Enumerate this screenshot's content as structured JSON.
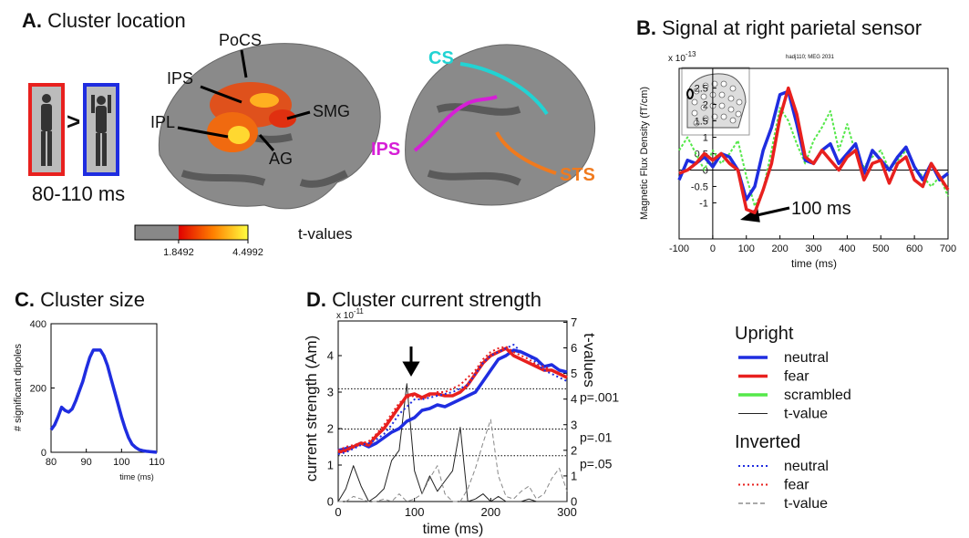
{
  "panel_a": {
    "title": {
      "letter": "A.",
      "text": "Cluster location"
    },
    "comparison": ">",
    "time_window": "80-110 ms",
    "left_labels": [
      "PoCS",
      "IPS",
      "IPL",
      "SMG",
      "AG"
    ],
    "right_labels": [
      {
        "text": "CS",
        "color": "#22d3d3"
      },
      {
        "text": "IPS",
        "color": "#d61fd6"
      },
      {
        "text": "STS",
        "color": "#f07a1e"
      }
    ],
    "colorbar": {
      "label": "t-values",
      "lim": [
        0.18,
        4.4992
      ],
      "ticks": [
        1.8492,
        4.4992
      ]
    }
  },
  "chart_data": [
    {
      "type": "line",
      "title": {
        "letter": "B.",
        "text": "Signal at right parietal sensor"
      },
      "xlabel": "time (ms)",
      "ylabel": "Magnetic Flux Density (fT/cm)",
      "y_multiplier": "x 10",
      "y_exponent": "-13",
      "sensor_label": "hadj110; MEG 2031",
      "annotation": "100 ms",
      "zero_axes": true,
      "x": [
        -100,
        -75,
        -50,
        -25,
        0,
        25,
        50,
        75,
        100,
        125,
        150,
        175,
        200,
        225,
        250,
        275,
        300,
        325,
        350,
        375,
        400,
        425,
        450,
        475,
        500,
        525,
        550,
        575,
        600,
        625,
        650,
        675,
        700
      ],
      "xlim": [
        -100,
        700
      ],
      "xticks": [
        -100,
        0,
        100,
        200,
        300,
        400,
        500,
        600,
        700
      ],
      "ylim": [
        -2.1,
        3.1
      ],
      "yticks": [
        -1,
        -0.5,
        0,
        0.5,
        1,
        1.5,
        2,
        2.5
      ],
      "series": [
        {
          "color": "#55e84a",
          "style": "dotted-thick",
          "values": [
            0.6,
            1,
            0.5,
            0,
            0.6,
            0.2,
            0.5,
            0.9,
            -0.2,
            -1.1,
            -0.6,
            0.6,
            1.9,
            1.5,
            0.8,
            0.2,
            0.9,
            1.3,
            1.8,
            0.6,
            1.4,
            0.5,
            0.1,
            0.4,
            0.6,
            0,
            0.3,
            0.6,
            0.1,
            -0.2,
            -0.5,
            -0.2,
            -0.8
          ]
        },
        {
          "color": "#1f2de0",
          "style": "solid",
          "values": [
            -0.3,
            0.3,
            0.2,
            0.4,
            0.1,
            0.5,
            0.4,
            0,
            -0.9,
            -0.5,
            0.6,
            1.3,
            2.3,
            2.4,
            1.4,
            0.3,
            0.2,
            0.6,
            0.8,
            0.2,
            0.5,
            0.8,
            -0.1,
            0.6,
            0.3,
            0,
            0.4,
            0.7,
            0.1,
            -0.3,
            0.2,
            -0.3,
            -0.1
          ]
        },
        {
          "color": "#e8201e",
          "style": "solid",
          "values": [
            -0.1,
            0,
            0.2,
            0.5,
            0.3,
            0.5,
            0.2,
            0,
            -1.2,
            -1.3,
            -0.6,
            0.2,
            1.6,
            2.5,
            1.7,
            0.4,
            0.2,
            0.6,
            0.3,
            0,
            0.4,
            0.6,
            -0.3,
            0.2,
            0.3,
            -0.4,
            0.2,
            0.4,
            -0.3,
            -0.5,
            0.2,
            -0.2,
            -0.6
          ]
        }
      ]
    },
    {
      "type": "line",
      "title": {
        "letter": "C.",
        "text": "Cluster size"
      },
      "xlabel": "time (ms)",
      "ylabel": "# significant dipoles",
      "x": [
        80,
        81,
        82,
        83,
        84,
        85,
        86,
        87,
        88,
        89,
        90,
        91,
        92,
        93,
        94,
        95,
        96,
        97,
        98,
        99,
        100,
        101,
        102,
        103,
        104,
        105,
        106,
        107,
        108,
        109,
        110
      ],
      "xlim": [
        80,
        110
      ],
      "xticks": [
        80,
        90,
        100,
        110
      ],
      "ylim": [
        0,
        400
      ],
      "yticks": [
        0,
        200,
        400
      ],
      "series": [
        {
          "color": "#1f2de0",
          "style": "solid",
          "values": [
            70,
            85,
            110,
            140,
            130,
            125,
            135,
            160,
            190,
            220,
            260,
            295,
            318,
            318,
            318,
            300,
            270,
            230,
            190,
            150,
            110,
            75,
            45,
            25,
            15,
            8,
            5,
            3,
            2,
            1,
            0
          ]
        }
      ]
    },
    {
      "type": "line",
      "title": {
        "letter": "D.",
        "text": "Cluster current strength"
      },
      "xlabel": "time (ms)",
      "ylabel": "current strength (Am)",
      "y2label": "t-values",
      "y_multiplier": "x 10",
      "y_exponent": "-11",
      "x": [
        0,
        10,
        20,
        30,
        40,
        50,
        60,
        70,
        80,
        90,
        100,
        110,
        120,
        130,
        140,
        150,
        160,
        170,
        180,
        190,
        200,
        210,
        220,
        230,
        240,
        250,
        260,
        270,
        280,
        290,
        300
      ],
      "xlim": [
        0,
        300
      ],
      "xticks": [
        0,
        100,
        200,
        300
      ],
      "ylim": [
        0,
        4.95
      ],
      "yticks": [
        0,
        1,
        2,
        3,
        4
      ],
      "y2lim": [
        0,
        7.05
      ],
      "y2ticks": [
        0,
        1,
        2,
        3,
        4,
        5,
        6,
        7
      ],
      "thresholds": [
        {
          "label": "p=.001",
          "value": 4.4
        },
        {
          "label": "p=.01",
          "value": 2.83
        },
        {
          "label": "p=.05",
          "value": 1.79
        }
      ],
      "series": [
        {
          "color": "#222222",
          "style": "thin",
          "axis": "y2",
          "values": [
            0,
            0.5,
            1.4,
            0.6,
            0,
            0.2,
            0.5,
            1.6,
            2,
            4.6,
            1.2,
            0.3,
            1,
            0.4,
            0.8,
            1.2,
            2.9,
            0,
            0.1,
            0.3,
            0,
            0.2,
            0,
            0,
            0,
            0.1,
            0,
            0,
            0,
            0,
            0
          ]
        },
        {
          "color": "#888888",
          "style": "dashed-thin",
          "axis": "y2",
          "values": [
            0,
            0,
            0.2,
            0.1,
            0,
            0,
            0.1,
            0,
            0.3,
            0,
            0.1,
            0.3,
            0.9,
            1.4,
            0.3,
            0,
            0,
            0.5,
            1.3,
            2.3,
            3.2,
            1,
            0.2,
            0.1,
            0.4,
            0.6,
            0.1,
            0.3,
            0.9,
            1.3,
            0.4
          ]
        },
        {
          "color": "#1f2de0",
          "style": "solid",
          "values": [
            1.4,
            1.45,
            1.5,
            1.6,
            1.5,
            1.6,
            1.75,
            1.9,
            2,
            2.2,
            2.3,
            2.5,
            2.55,
            2.65,
            2.6,
            2.7,
            2.8,
            2.9,
            3,
            3.3,
            3.6,
            3.9,
            4,
            4.15,
            4.1,
            4,
            3.9,
            3.7,
            3.75,
            3.6,
            3.55
          ]
        },
        {
          "color": "#e8201e",
          "style": "solid",
          "values": [
            1.35,
            1.4,
            1.5,
            1.6,
            1.55,
            1.8,
            2,
            2.3,
            2.6,
            2.9,
            2.95,
            2.85,
            2.95,
            2.95,
            2.9,
            2.9,
            3,
            3.2,
            3.5,
            3.8,
            4,
            4.1,
            4.2,
            4,
            3.9,
            3.8,
            3.7,
            3.6,
            3.6,
            3.5,
            3.4
          ]
        },
        {
          "color": "#1f2de0",
          "style": "dotted",
          "values": [
            1.3,
            1.35,
            1.45,
            1.55,
            1.6,
            1.7,
            1.85,
            2.1,
            2.4,
            2.6,
            2.8,
            2.8,
            2.85,
            2.9,
            2.95,
            3,
            3.1,
            3.2,
            3.5,
            3.8,
            4,
            4.1,
            4.2,
            4.3,
            4.1,
            4,
            3.8,
            3.6,
            3.5,
            3.4,
            3.3
          ]
        },
        {
          "color": "#e8201e",
          "style": "dotted",
          "values": [
            1.4,
            1.5,
            1.55,
            1.6,
            1.65,
            1.85,
            2.1,
            2.4,
            2.7,
            2.85,
            2.9,
            2.8,
            2.9,
            3,
            3,
            3.1,
            3.2,
            3.4,
            3.6,
            3.9,
            4.1,
            4.2,
            4.25,
            4.1,
            4,
            3.9,
            3.75,
            3.7,
            3.6,
            3.5,
            3.4
          ]
        }
      ]
    }
  ],
  "legend": {
    "groups": [
      {
        "title": "Upright",
        "items": [
          {
            "label": "neutral",
            "color": "#1f2de0",
            "style": "solid"
          },
          {
            "label": "fear",
            "color": "#e8201e",
            "style": "solid"
          },
          {
            "label": "scrambled",
            "color": "#55e84a",
            "style": "solid"
          },
          {
            "label": "t-value",
            "color": "#222222",
            "style": "thin"
          }
        ]
      },
      {
        "title": "Inverted",
        "items": [
          {
            "label": "neutral",
            "color": "#1f2de0",
            "style": "dotted"
          },
          {
            "label": "fear",
            "color": "#e8201e",
            "style": "dotted"
          },
          {
            "label": "t-value",
            "color": "#555555",
            "style": "dashed-thin"
          }
        ]
      }
    ]
  }
}
